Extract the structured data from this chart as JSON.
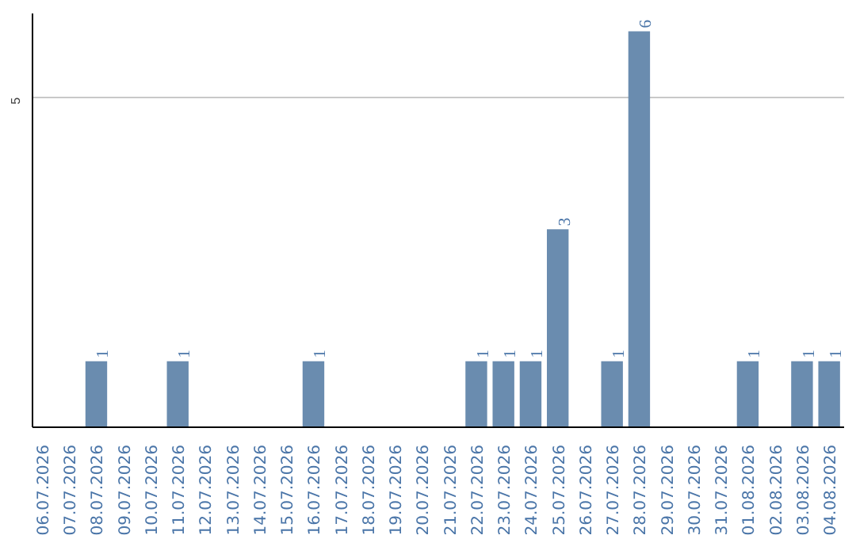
{
  "chart_data": {
    "type": "bar",
    "categories": [
      "06.07.2026",
      "07.07.2026",
      "08.07.2026",
      "09.07.2026",
      "10.07.2026",
      "11.07.2026",
      "12.07.2026",
      "13.07.2026",
      "14.07.2026",
      "15.07.2026",
      "16.07.2026",
      "17.07.2026",
      "18.07.2026",
      "19.07.2026",
      "20.07.2026",
      "21.07.2026",
      "22.07.2026",
      "23.07.2026",
      "24.07.2026",
      "25.07.2026",
      "26.07.2026",
      "27.07.2026",
      "28.07.2026",
      "29.07.2026",
      "30.07.2026",
      "31.07.2026",
      "01.08.2026",
      "02.08.2026",
      "03.08.2026",
      "04.08.2026"
    ],
    "values": [
      0,
      0,
      1,
      0,
      0,
      1,
      0,
      0,
      0,
      0,
      1,
      0,
      0,
      0,
      0,
      0,
      1,
      1,
      1,
      3,
      0,
      1,
      6,
      0,
      0,
      0,
      1,
      0,
      1,
      1
    ],
    "value_labels": [
      null,
      null,
      "1",
      null,
      null,
      "1",
      null,
      null,
      null,
      null,
      "1",
      null,
      null,
      null,
      null,
      null,
      "1",
      "1",
      "1",
      "3",
      null,
      "1",
      "6",
      null,
      null,
      null,
      "1",
      null,
      "1",
      "1"
    ],
    "color": "#6a8caf",
    "ylim": [
      0,
      6.27
    ],
    "yticks": [
      5
    ],
    "grid": "y"
  }
}
